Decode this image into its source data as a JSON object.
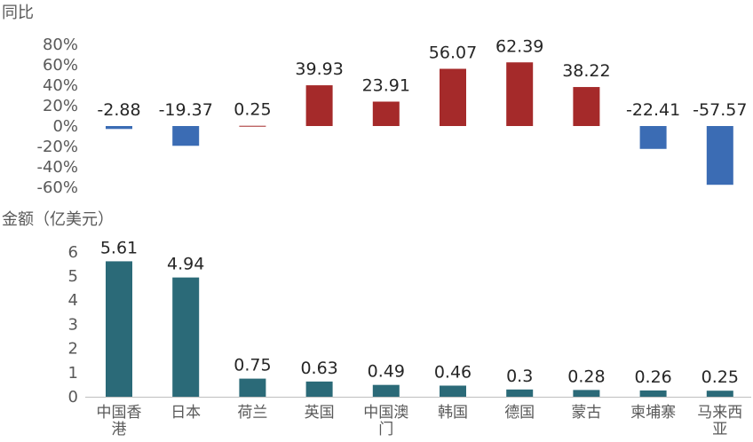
{
  "chart_data": [
    {
      "type": "bar",
      "ylabel": "同比",
      "categories": [
        "中国香港",
        "日本",
        "荷兰",
        "英国",
        "中国澳门",
        "韩国",
        "德国",
        "蒙古",
        "柬埔寨",
        "马来西亚"
      ],
      "values": [
        -2.88,
        -19.37,
        0.25,
        39.93,
        23.91,
        56.07,
        62.39,
        38.22,
        -22.41,
        -57.57
      ],
      "value_labels": [
        "-2.88",
        "-19.37",
        "0.25",
        "39.93",
        "23.91",
        "56.07",
        "62.39",
        "38.22",
        "-22.41",
        "-57.57"
      ],
      "yticks": [
        80,
        60,
        40,
        20,
        0,
        -20,
        -40,
        -60
      ],
      "ytick_labels": [
        "80%",
        "60%",
        "40%",
        "20%",
        "0%",
        "-20%",
        "-40%",
        "-60%"
      ],
      "ylim": [
        -60,
        80
      ],
      "colors": {
        "positive": "#A52A2A",
        "negative": "#3B6CB4"
      },
      "grid": false
    },
    {
      "type": "bar",
      "ylabel": "金额（亿美元）",
      "categories": [
        "中国香港",
        "日本",
        "荷兰",
        "英国",
        "中国澳门",
        "韩国",
        "德国",
        "蒙古",
        "柬埔寨",
        "马来西亚"
      ],
      "category_labels": [
        [
          "中国香",
          "港"
        ],
        [
          "日本"
        ],
        [
          "荷兰"
        ],
        [
          "英国"
        ],
        [
          "中国澳",
          "门"
        ],
        [
          "韩国"
        ],
        [
          "德国"
        ],
        [
          "蒙古"
        ],
        [
          "柬埔寨"
        ],
        [
          "马来西",
          "亚"
        ]
      ],
      "values": [
        5.61,
        4.94,
        0.75,
        0.63,
        0.49,
        0.46,
        0.3,
        0.28,
        0.26,
        0.25
      ],
      "value_labels": [
        "5.61",
        "4.94",
        "0.75",
        "0.63",
        "0.49",
        "0.46",
        "0.3",
        "0.28",
        "0.26",
        "0.25"
      ],
      "yticks": [
        6,
        5,
        4,
        3,
        2,
        1,
        0
      ],
      "ytick_labels": [
        "6",
        "5",
        "4",
        "3",
        "2",
        "1",
        "0"
      ],
      "ylim": [
        0,
        6
      ],
      "colors": {
        "bar": "#2B6A78",
        "axis": "#BFBFBF"
      },
      "grid": false
    }
  ]
}
